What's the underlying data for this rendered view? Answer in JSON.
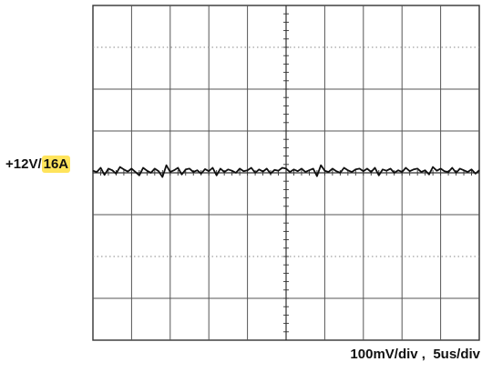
{
  "chart_data": {
    "type": "line",
    "title": "",
    "channel": {
      "label_prefix": "+12V/",
      "label_highlight": "16A"
    },
    "scale": {
      "volts_per_div": "100mV/div",
      "separator": " ,  ",
      "time_per_div": "5us/div"
    },
    "grid": {
      "x_divisions": 10,
      "y_divisions": 8,
      "minor_ticks_per_division": 5,
      "dotted_rows": [
        1,
        6
      ]
    },
    "xlim": [
      0,
      10
    ],
    "ylim": [
      -4,
      4
    ],
    "series": [
      {
        "x": [
          0,
          0.1,
          0.2,
          0.3,
          0.4,
          0.5,
          0.6,
          0.7,
          0.8,
          0.9,
          1.0,
          1.1,
          1.2,
          1.3,
          1.4,
          1.5,
          1.6,
          1.7,
          1.8,
          1.9,
          2.0,
          2.1,
          2.2,
          2.3,
          2.4,
          2.5,
          2.6,
          2.7,
          2.8,
          2.9,
          3.0,
          3.1,
          3.2,
          3.3,
          3.4,
          3.5,
          3.6,
          3.7,
          3.8,
          3.9,
          4.0,
          4.1,
          4.2,
          4.3,
          4.4,
          4.5,
          4.6,
          4.7,
          4.8,
          4.9,
          5.0,
          5.1,
          5.2,
          5.3,
          5.4,
          5.5,
          5.6,
          5.7,
          5.8,
          5.9,
          6.0,
          6.1,
          6.2,
          6.3,
          6.4,
          6.5,
          6.6,
          6.7,
          6.8,
          6.9,
          7.0,
          7.1,
          7.2,
          7.3,
          7.4,
          7.5,
          7.6,
          7.7,
          7.8,
          7.9,
          8.0,
          8.1,
          8.2,
          8.3,
          8.4,
          8.5,
          8.6,
          8.7,
          8.8,
          8.9,
          9.0,
          9.1,
          9.2,
          9.3,
          9.4,
          9.5,
          9.6,
          9.7,
          9.8,
          9.9,
          10.0
        ],
        "y": [
          0.05,
          0.02,
          0.12,
          -0.05,
          0.1,
          0.06,
          -0.02,
          0.14,
          0.08,
          0.03,
          0.1,
          0.02,
          -0.06,
          0.12,
          0.05,
          0.0,
          0.1,
          0.04,
          -0.1,
          0.18,
          0.02,
          0.06,
          0.12,
          -0.04,
          0.08,
          0.1,
          0.02,
          0.06,
          -0.02,
          0.09,
          0.04,
          0.12,
          -0.06,
          0.1,
          0.02,
          0.08,
          0.05,
          0.0,
          0.1,
          0.04,
          0.06,
          0.12,
          0.0,
          0.08,
          0.03,
          0.1,
          -0.02,
          0.07,
          0.05,
          0.12,
          0.1,
          0.02,
          0.08,
          0.04,
          0.1,
          0.02,
          0.06,
          0.1,
          -0.08,
          0.18,
          0.05,
          0.02,
          0.1,
          0.04,
          0.0,
          0.12,
          0.06,
          0.02,
          0.08,
          0.1,
          0.04,
          0.1,
          0.02,
          0.12,
          -0.06,
          0.08,
          0.05,
          0.1,
          0.0,
          0.06,
          0.02,
          0.12,
          0.04,
          0.08,
          0.1,
          0.02,
          0.06,
          -0.04,
          0.14,
          0.05,
          0.1,
          0.04,
          0.02,
          0.12,
          0.0,
          0.1,
          0.06,
          0.02,
          0.08,
          -0.02,
          0.06
        ]
      }
    ]
  }
}
